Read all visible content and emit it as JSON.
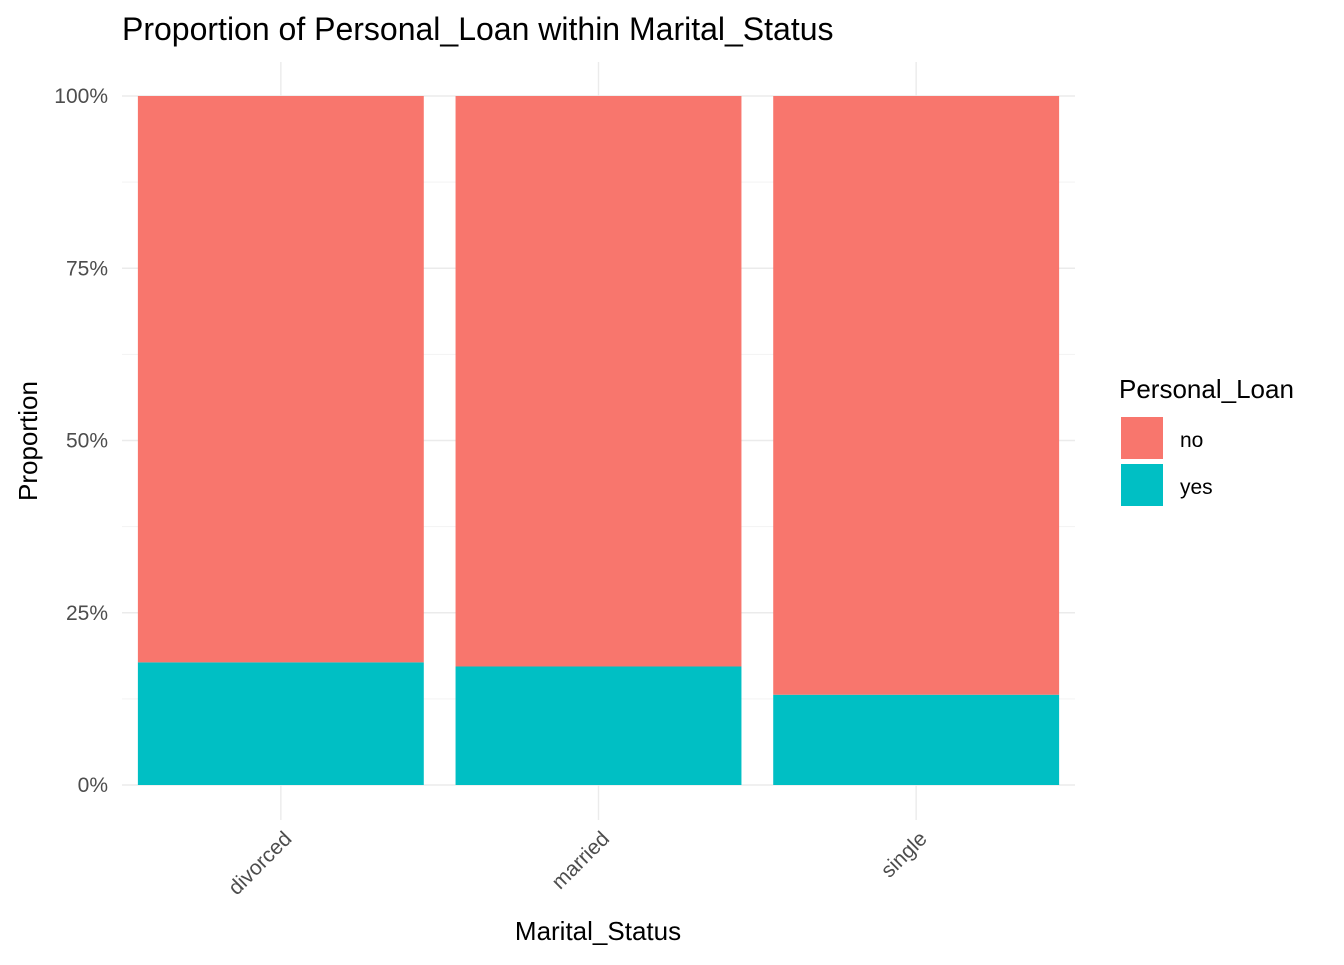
{
  "chart_data": {
    "type": "bar",
    "stacked": true,
    "title": "Proportion of Personal_Loan within Marital_Status",
    "xlabel": "Marital_Status",
    "ylabel": "Proportion",
    "categories": [
      "divorced",
      "married",
      "single"
    ],
    "series": [
      {
        "name": "no",
        "color": "#F8766D",
        "values": [
          0.822,
          0.828,
          0.869
        ]
      },
      {
        "name": "yes",
        "color": "#00BFC4",
        "values": [
          0.178,
          0.172,
          0.131
        ]
      }
    ],
    "ylim": [
      0,
      1
    ],
    "yticks": [
      0,
      0.25,
      0.5,
      0.75,
      1
    ],
    "ytick_labels": [
      "0%",
      "25%",
      "50%",
      "75%",
      "100%"
    ],
    "legend": {
      "title": "Personal_Loan",
      "position": "right"
    },
    "grid": true
  }
}
